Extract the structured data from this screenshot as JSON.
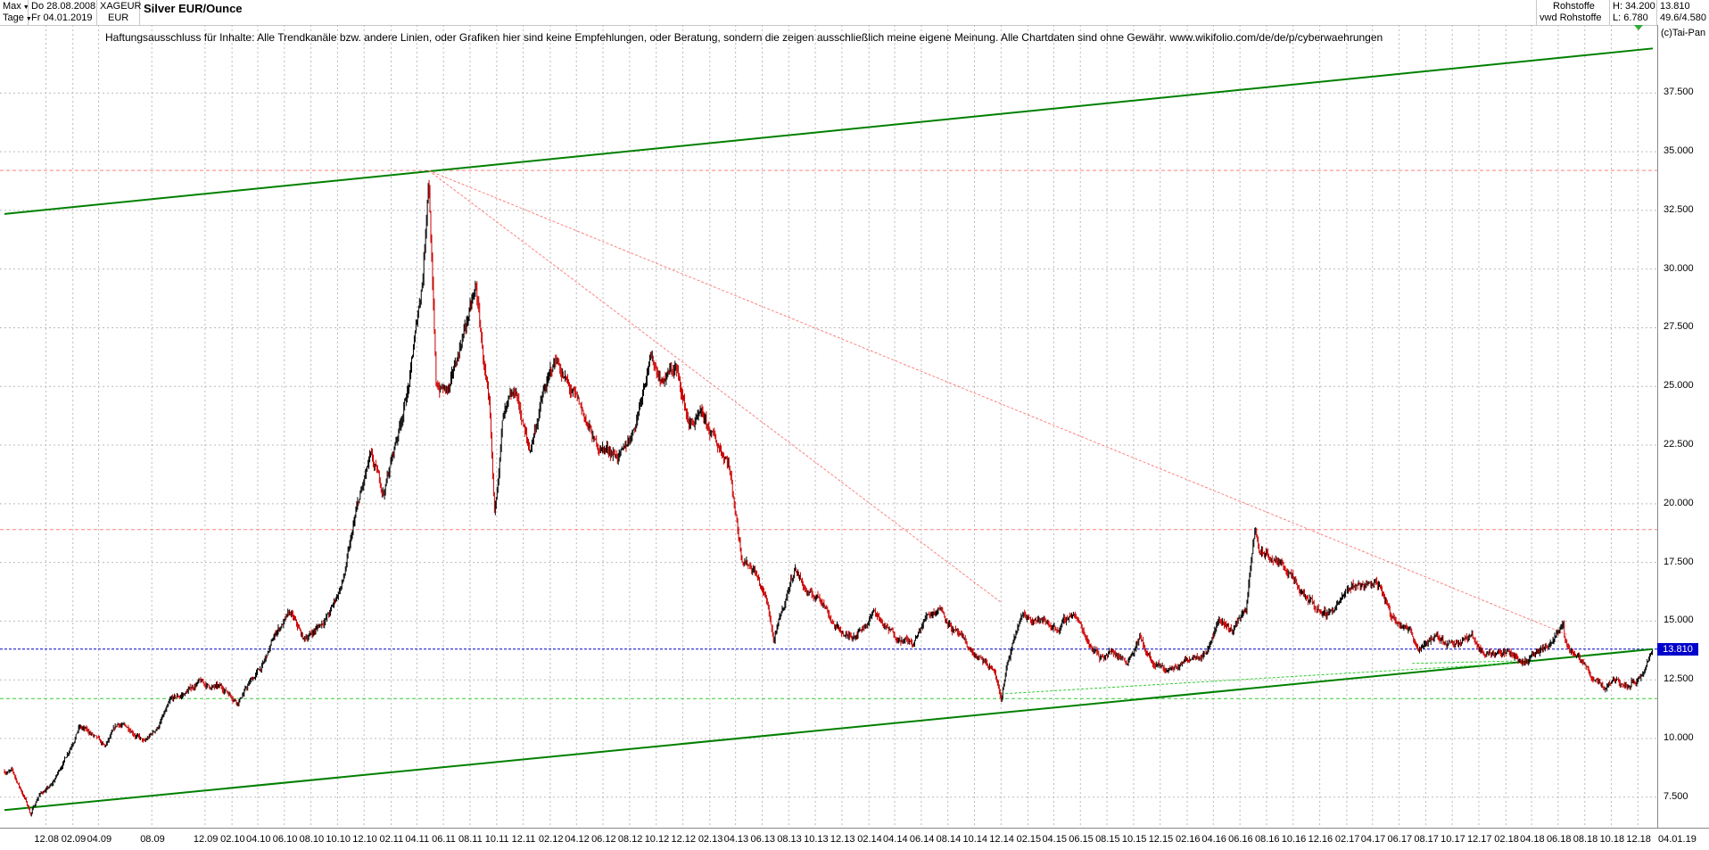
{
  "toolbar": {
    "period": "Max",
    "interval": "Tage",
    "date_from": "Do 28.08.2008",
    "date_to": "Fr 04.01.2019",
    "symbol": "XAGEUR",
    "currency": "EUR",
    "title": "Silver EUR/Ounce",
    "source_1": "Rohstoffe",
    "source_2": "vwd Rohstoffe",
    "high_label": "H: 34.200",
    "low_label": "L: 6.780",
    "last_value": "13.810",
    "range_info": "49.6/4.580"
  },
  "disclaimer": "Haftungsausschluss für Inhalte: Alle Trendkanäle bzw. andere Linien, oder Grafiken hier sind keine Empfehlungen, oder Beratung, sondern die zeigen ausschließlich meine eigene Meinung. Alle Chartdaten sind ohne Gewähr.  www.wikifolio.com/de/de/p/cyberwaehrungen",
  "copyright": "(c)Tai-Pan",
  "current_price_label": "13.810",
  "end_date_label": "04.01.19",
  "colors": {
    "candle_up": "#000000",
    "candle_down": "#cc0000",
    "trend_channel": "#008000",
    "resistance": "#ff8080",
    "support": "#33cc33",
    "current_price": "#0000cc",
    "grid": "#bbbbbb"
  },
  "chart_data": {
    "type": "line",
    "title": "Silver EUR/Ounce",
    "xlabel": "",
    "ylabel": "",
    "ylim": [
      6.2,
      40.4
    ],
    "y_ticks": [
      "7.500",
      "10.000",
      "12.500",
      "15.000",
      "17.500",
      "20.000",
      "22.500",
      "25.000",
      "27.500",
      "30.000",
      "32.500",
      "35.000",
      "37.500"
    ],
    "x_ticks": [
      "12.08",
      "02.09",
      "04.09",
      "08.09",
      "12.09",
      "02.10",
      "04.10",
      "06.10",
      "08.10",
      "10.10",
      "12.10",
      "02.11",
      "04.11",
      "06.11",
      "08.11",
      "10.11",
      "12.11",
      "02.12",
      "04.12",
      "06.12",
      "08.12",
      "10.12",
      "12.12",
      "02.13",
      "04.13",
      "06.13",
      "08.13",
      "10.13",
      "12.13",
      "02.14",
      "04.14",
      "06.14",
      "08.14",
      "10.14",
      "12.14",
      "02.15",
      "04.15",
      "06.15",
      "08.15",
      "10.15",
      "12.15",
      "02.16",
      "04.16",
      "06.16",
      "08.16",
      "10.16",
      "12.16",
      "02.17",
      "04.17",
      "06.17",
      "08.17",
      "10.17",
      "12.17",
      "02.18",
      "04.18",
      "06.18",
      "08.18",
      "10.18",
      "12.18"
    ],
    "series": [
      {
        "values": [
          [
            "2008-09",
            8.6
          ],
          [
            "2008-10",
            7.4
          ],
          [
            "2008-11",
            7.6
          ],
          [
            "2008-12",
            8.0
          ],
          [
            "2009-01",
            9.2
          ],
          [
            "2009-02",
            10.5
          ],
          [
            "2009-03",
            10.2
          ],
          [
            "2009-04",
            9.6
          ],
          [
            "2009-05",
            10.6
          ],
          [
            "2009-06",
            10.4
          ],
          [
            "2009-07",
            9.8
          ],
          [
            "2009-08",
            10.5
          ],
          [
            "2009-09",
            11.6
          ],
          [
            "2009-10",
            11.9
          ],
          [
            "2009-11",
            12.4
          ],
          [
            "2009-12",
            12.2
          ],
          [
            "2010-01",
            12.1
          ],
          [
            "2010-02",
            11.6
          ],
          [
            "2010-03",
            12.4
          ],
          [
            "2010-04",
            13.2
          ],
          [
            "2010-05",
            14.6
          ],
          [
            "2010-06",
            15.3
          ],
          [
            "2010-07",
            14.2
          ],
          [
            "2010-08",
            14.7
          ],
          [
            "2010-09",
            15.4
          ],
          [
            "2010-10",
            16.8
          ],
          [
            "2010-11",
            19.8
          ],
          [
            "2010-12",
            21.9
          ],
          [
            "2011-01",
            20.5
          ],
          [
            "2011-02",
            22.9
          ],
          [
            "2011-03",
            25.2
          ],
          [
            "2011-04",
            29.8
          ],
          [
            "2011-05",
            25.0
          ],
          [
            "2011-06",
            24.8
          ],
          [
            "2011-07",
            27.2
          ],
          [
            "2011-08",
            29.1
          ],
          [
            "2011-09",
            23.7
          ],
          [
            "2011-10",
            23.6
          ],
          [
            "2011-11",
            24.7
          ],
          [
            "2011-12",
            22.2
          ],
          [
            "2012-01",
            24.6
          ],
          [
            "2012-02",
            26.2
          ],
          [
            "2012-03",
            24.9
          ],
          [
            "2012-04",
            23.9
          ],
          [
            "2012-05",
            22.5
          ],
          [
            "2012-06",
            22.3
          ],
          [
            "2012-07",
            22.0
          ],
          [
            "2012-08",
            23.5
          ],
          [
            "2012-09",
            26.3
          ],
          [
            "2012-10",
            25.3
          ],
          [
            "2012-11",
            25.8
          ],
          [
            "2012-12",
            23.4
          ],
          [
            "2013-01",
            23.6
          ],
          [
            "2013-02",
            22.6
          ],
          [
            "2013-03",
            21.9
          ],
          [
            "2013-04",
            17.8
          ],
          [
            "2013-05",
            17.2
          ],
          [
            "2013-06",
            15.6
          ],
          [
            "2013-07",
            15.3
          ],
          [
            "2013-08",
            17.3
          ],
          [
            "2013-09",
            16.1
          ],
          [
            "2013-10",
            16.0
          ],
          [
            "2013-11",
            14.8
          ],
          [
            "2013-12",
            14.3
          ],
          [
            "2014-01",
            14.7
          ],
          [
            "2014-02",
            15.4
          ],
          [
            "2014-03",
            14.6
          ],
          [
            "2014-04",
            14.3
          ],
          [
            "2014-05",
            14.0
          ],
          [
            "2014-06",
            15.3
          ],
          [
            "2014-07",
            15.6
          ],
          [
            "2014-08",
            14.6
          ],
          [
            "2014-09",
            13.9
          ],
          [
            "2014-10",
            13.3
          ],
          [
            "2014-11",
            12.9
          ],
          [
            "2014-12",
            13.1
          ],
          [
            "2015-01",
            15.1
          ],
          [
            "2015-02",
            15.2
          ],
          [
            "2015-03",
            14.9
          ],
          [
            "2015-04",
            14.7
          ],
          [
            "2015-05",
            15.4
          ],
          [
            "2015-06",
            14.3
          ],
          [
            "2015-07",
            13.5
          ],
          [
            "2015-08",
            13.7
          ],
          [
            "2015-09",
            13.3
          ],
          [
            "2015-10",
            14.3
          ],
          [
            "2015-11",
            13.1
          ],
          [
            "2015-12",
            12.9
          ],
          [
            "2016-01",
            13.1
          ],
          [
            "2016-02",
            13.6
          ],
          [
            "2016-03",
            13.7
          ],
          [
            "2016-04",
            15.1
          ],
          [
            "2016-05",
            14.6
          ],
          [
            "2016-06",
            15.6
          ],
          [
            "2016-07",
            18.0
          ],
          [
            "2016-08",
            17.6
          ],
          [
            "2016-09",
            17.3
          ],
          [
            "2016-10",
            16.2
          ],
          [
            "2016-11",
            15.7
          ],
          [
            "2016-12",
            15.3
          ],
          [
            "2017-01",
            15.8
          ],
          [
            "2017-02",
            16.5
          ],
          [
            "2017-03",
            16.6
          ],
          [
            "2017-04",
            16.6
          ],
          [
            "2017-05",
            15.2
          ],
          [
            "2017-06",
            14.9
          ],
          [
            "2017-07",
            13.9
          ],
          [
            "2017-08",
            14.3
          ],
          [
            "2017-09",
            14.1
          ],
          [
            "2017-10",
            14.2
          ],
          [
            "2017-11",
            14.3
          ],
          [
            "2017-12",
            13.6
          ],
          [
            "2018-01",
            13.7
          ],
          [
            "2018-02",
            13.6
          ],
          [
            "2018-03",
            13.3
          ],
          [
            "2018-04",
            13.6
          ],
          [
            "2018-05",
            14.0
          ],
          [
            "2018-06",
            14.3
          ],
          [
            "2018-07",
            13.4
          ],
          [
            "2018-08",
            12.7
          ],
          [
            "2018-09",
            12.2
          ],
          [
            "2018-10",
            12.6
          ],
          [
            "2018-11",
            12.5
          ],
          [
            "2018-12",
            12.7
          ],
          [
            "2019-01-04",
            13.81
          ]
        ]
      }
    ],
    "extremes": [
      [
        "2008-10-27",
        6.78
      ],
      [
        "2011-04-28",
        34.2
      ],
      [
        "2011-09-26",
        19.4
      ],
      [
        "2013-06-28",
        14.1
      ],
      [
        "2014-12-01",
        11.7
      ],
      [
        "2016-07-06",
        18.9
      ],
      [
        "2018-06-14",
        14.8
      ],
      [
        "2018-11-13",
        12.1
      ]
    ],
    "trendlines": [
      {
        "kind": "channel_upper",
        "color": "#008000",
        "from": [
          "2008-08-28",
          32.35
        ],
        "to": [
          "2019-01-04",
          39.4
        ]
      },
      {
        "kind": "channel_lower",
        "color": "#008000",
        "from": [
          "2008-08-28",
          6.95
        ],
        "to": [
          "2019-01-04",
          13.81
        ]
      },
      {
        "kind": "resistance",
        "color": "#ff8080",
        "from": [
          "2011-04-28",
          34.2
        ],
        "to": [
          "2018-06-25",
          14.4
        ]
      },
      {
        "kind": "resistance",
        "color": "#ff8080",
        "from": [
          "2011-04-28",
          34.2
        ],
        "to": [
          "2014-12-01",
          15.8
        ]
      },
      {
        "kind": "support",
        "color": "#33cc33",
        "from": [
          "2014-12-01",
          11.9
        ],
        "to": [
          "2018-02-15",
          13.2
        ]
      },
      {
        "kind": "support",
        "color": "#33cc33",
        "from": [
          "2017-07-01",
          13.2
        ],
        "to": [
          "2018-02-15",
          13.3
        ]
      }
    ],
    "hlines": [
      {
        "value": 34.2,
        "color": "#ff8080"
      },
      {
        "value": 18.9,
        "color": "#ff8080"
      },
      {
        "value": 13.81,
        "color": "#0000cc"
      },
      {
        "value": 11.7,
        "color": "#33cc33"
      }
    ],
    "grid": true,
    "legend": "none"
  }
}
